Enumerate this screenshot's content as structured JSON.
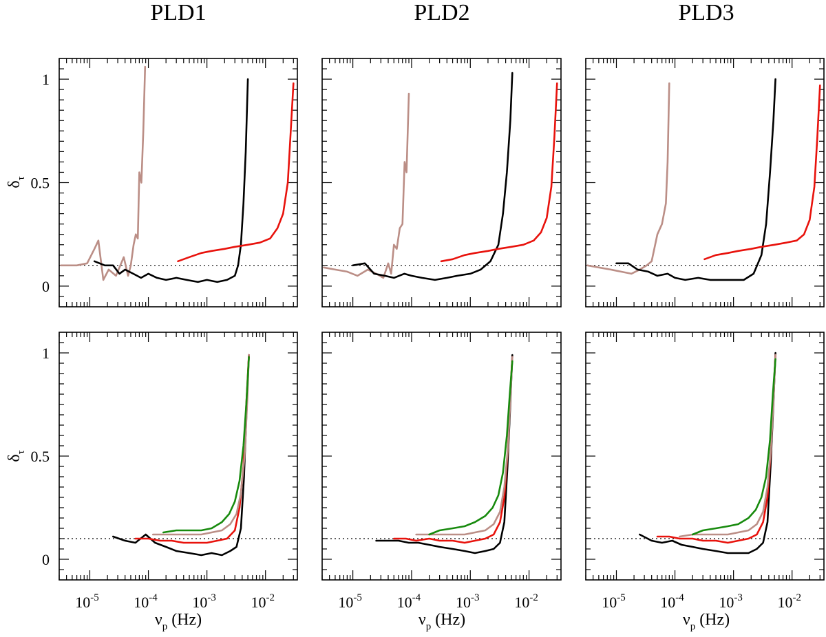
{
  "figure": {
    "column_titles": [
      "PLD1",
      "PLD2",
      "PLD3"
    ],
    "ylabel_main": "δ",
    "ylabel_sub": "τ",
    "xlabel_main": "ν",
    "xlabel_sub": "p",
    "xlabel_unit": " (Hz)",
    "x_tick_labels": [
      {
        "base": "10",
        "exp": "-5"
      },
      {
        "base": "10",
        "exp": "-4"
      },
      {
        "base": "10",
        "exp": "-3"
      },
      {
        "base": "10",
        "exp": "-2"
      }
    ],
    "y_tick_labels": [
      "0",
      "0.5",
      "1"
    ],
    "colors": {
      "black": "#000000",
      "red": "#e8120c",
      "rosy": "#bb8e86",
      "green": "#178a0d"
    }
  },
  "chart_data": [
    {
      "type": "line",
      "panel": "top-left",
      "title": "PLD1",
      "x_scale": "log",
      "xlim": [
        3e-06,
        0.035
      ],
      "ylim": [
        -0.1,
        1.1
      ],
      "reference_y": 0.1,
      "grid": false,
      "series": [
        {
          "color": "rosy",
          "x": [
            3.2e-06,
            6e-06,
            9e-06,
            1.2e-05,
            1.4e-05,
            1.7e-05,
            2.1e-05,
            2.8e-05,
            3.8e-05,
            4.5e-05,
            5e-05,
            5.6e-05,
            6.1e-05,
            6.6e-05,
            7e-05,
            7.6e-05,
            8.2e-05,
            8.8e-05
          ],
          "y": [
            0.1,
            0.1,
            0.11,
            0.18,
            0.22,
            0.03,
            0.08,
            0.05,
            0.14,
            0.05,
            0.1,
            0.2,
            0.25,
            0.23,
            0.55,
            0.5,
            0.75,
            1.06
          ]
        },
        {
          "color": "black",
          "x": [
            1.2e-05,
            1.8e-05,
            2.5e-05,
            3.2e-05,
            4e-05,
            5.5e-05,
            7.5e-05,
            0.0001,
            0.00014,
            0.0002,
            0.0003,
            0.00045,
            0.0007,
            0.001,
            0.0015,
            0.0022,
            0.003,
            0.0034,
            0.0038,
            0.0042,
            0.0046,
            0.005
          ],
          "y": [
            0.12,
            0.1,
            0.1,
            0.06,
            0.08,
            0.06,
            0.04,
            0.06,
            0.04,
            0.03,
            0.04,
            0.03,
            0.02,
            0.03,
            0.02,
            0.03,
            0.05,
            0.1,
            0.2,
            0.4,
            0.65,
            1.0
          ]
        },
        {
          "color": "red",
          "x": [
            0.00032,
            0.0005,
            0.0008,
            0.0012,
            0.002,
            0.003,
            0.005,
            0.008,
            0.012,
            0.016,
            0.02,
            0.024,
            0.027,
            0.03
          ],
          "y": [
            0.12,
            0.14,
            0.16,
            0.17,
            0.18,
            0.19,
            0.2,
            0.21,
            0.23,
            0.28,
            0.35,
            0.5,
            0.75,
            0.98
          ]
        }
      ]
    },
    {
      "type": "line",
      "panel": "top-middle",
      "title": "PLD2",
      "x_scale": "log",
      "xlim": [
        3e-06,
        0.035
      ],
      "ylim": [
        -0.1,
        1.1
      ],
      "reference_y": 0.1,
      "grid": false,
      "series": [
        {
          "color": "rosy",
          "x": [
            3.2e-06,
            5e-06,
            8e-06,
            1.2e-05,
            1.8e-05,
            2.5e-05,
            3.3e-05,
            4e-05,
            4.5e-05,
            5e-05,
            5.6e-05,
            6.3e-05,
            7e-05,
            7.6e-05,
            8.2e-05,
            9e-05
          ],
          "y": [
            0.09,
            0.08,
            0.07,
            0.05,
            0.08,
            0.06,
            0.04,
            0.11,
            0.06,
            0.2,
            0.18,
            0.28,
            0.3,
            0.6,
            0.55,
            0.93
          ]
        },
        {
          "color": "black",
          "x": [
            1e-05,
            1.6e-05,
            2.3e-05,
            3.5e-05,
            5e-05,
            7.5e-05,
            0.0001,
            0.00015,
            0.00025,
            0.0004,
            0.0006,
            0.001,
            0.0015,
            0.0022,
            0.003,
            0.0036,
            0.0042,
            0.0048,
            0.0052
          ],
          "y": [
            0.1,
            0.11,
            0.06,
            0.05,
            0.04,
            0.06,
            0.05,
            0.04,
            0.03,
            0.04,
            0.05,
            0.06,
            0.08,
            0.12,
            0.2,
            0.35,
            0.55,
            0.8,
            1.03
          ]
        },
        {
          "color": "red",
          "x": [
            0.00032,
            0.0005,
            0.0008,
            0.0012,
            0.002,
            0.003,
            0.005,
            0.008,
            0.012,
            0.016,
            0.02,
            0.024,
            0.027,
            0.03
          ],
          "y": [
            0.12,
            0.13,
            0.15,
            0.16,
            0.17,
            0.18,
            0.19,
            0.2,
            0.22,
            0.26,
            0.33,
            0.48,
            0.72,
            0.98
          ]
        }
      ]
    },
    {
      "type": "line",
      "panel": "top-right",
      "title": "PLD3",
      "x_scale": "log",
      "xlim": [
        3e-06,
        0.035
      ],
      "ylim": [
        -0.1,
        1.1
      ],
      "reference_y": 0.1,
      "grid": false,
      "series": [
        {
          "color": "rosy",
          "x": [
            3.2e-06,
            5e-06,
            8e-06,
            1.2e-05,
            1.8e-05,
            2.5e-05,
            3.3e-05,
            4e-05,
            5e-05,
            6e-05,
            7e-05,
            7.5e-05,
            8e-05
          ],
          "y": [
            0.1,
            0.09,
            0.08,
            0.07,
            0.06,
            0.08,
            0.1,
            0.12,
            0.25,
            0.3,
            0.4,
            0.6,
            0.98
          ]
        },
        {
          "color": "black",
          "x": [
            1e-05,
            1.6e-05,
            2.3e-05,
            3.5e-05,
            5e-05,
            7.5e-05,
            0.0001,
            0.00015,
            0.00025,
            0.0004,
            0.0006,
            0.001,
            0.0015,
            0.0022,
            0.003,
            0.0036,
            0.0042,
            0.0048,
            0.0052
          ],
          "y": [
            0.11,
            0.11,
            0.08,
            0.07,
            0.05,
            0.06,
            0.04,
            0.03,
            0.04,
            0.03,
            0.03,
            0.03,
            0.03,
            0.06,
            0.15,
            0.3,
            0.55,
            0.8,
            1.0
          ]
        },
        {
          "color": "red",
          "x": [
            0.00032,
            0.0005,
            0.0008,
            0.0012,
            0.002,
            0.003,
            0.005,
            0.008,
            0.012,
            0.016,
            0.02,
            0.024,
            0.027,
            0.03
          ],
          "y": [
            0.13,
            0.15,
            0.16,
            0.17,
            0.18,
            0.19,
            0.2,
            0.21,
            0.22,
            0.25,
            0.32,
            0.48,
            0.72,
            0.97
          ]
        }
      ]
    },
    {
      "type": "line",
      "panel": "bottom-left",
      "title": "",
      "x_scale": "log",
      "xlim": [
        3e-06,
        0.035
      ],
      "ylim": [
        -0.1,
        1.1
      ],
      "reference_y": 0.1,
      "grid": false,
      "series": [
        {
          "color": "black",
          "x": [
            2.5e-05,
            4e-05,
            6e-05,
            9e-05,
            0.00013,
            0.0002,
            0.0003,
            0.0005,
            0.0008,
            0.0012,
            0.0018,
            0.0025,
            0.0032,
            0.0038,
            0.0043,
            0.0048,
            0.0052
          ],
          "y": [
            0.11,
            0.09,
            0.08,
            0.12,
            0.08,
            0.06,
            0.04,
            0.03,
            0.02,
            0.03,
            0.02,
            0.04,
            0.06,
            0.15,
            0.4,
            0.75,
            0.99
          ]
        },
        {
          "color": "red",
          "x": [
            6e-05,
            0.0001,
            0.00016,
            0.00025,
            0.0004,
            0.0006,
            0.001,
            0.0015,
            0.0022,
            0.003,
            0.0036,
            0.0042,
            0.0047,
            0.0052
          ],
          "y": [
            0.1,
            0.1,
            0.09,
            0.09,
            0.08,
            0.08,
            0.08,
            0.09,
            0.1,
            0.14,
            0.25,
            0.45,
            0.75,
            0.99
          ]
        },
        {
          "color": "rosy",
          "x": [
            0.00012,
            0.0002,
            0.0003,
            0.0005,
            0.0008,
            0.0012,
            0.0018,
            0.0025,
            0.0032,
            0.0038,
            0.0044,
            0.0049,
            0.0052
          ],
          "y": [
            0.12,
            0.12,
            0.12,
            0.12,
            0.12,
            0.13,
            0.14,
            0.17,
            0.22,
            0.32,
            0.5,
            0.78,
            0.99
          ]
        },
        {
          "color": "green",
          "x": [
            0.00018,
            0.0003,
            0.0005,
            0.0008,
            0.0012,
            0.0018,
            0.0024,
            0.003,
            0.0036,
            0.0042,
            0.0047,
            0.0052
          ],
          "y": [
            0.13,
            0.14,
            0.14,
            0.14,
            0.15,
            0.18,
            0.22,
            0.28,
            0.38,
            0.55,
            0.75,
            0.98
          ]
        }
      ]
    },
    {
      "type": "line",
      "panel": "bottom-middle",
      "title": "",
      "x_scale": "log",
      "xlim": [
        3e-06,
        0.035
      ],
      "ylim": [
        -0.1,
        1.1
      ],
      "reference_y": 0.1,
      "grid": false,
      "series": [
        {
          "color": "black",
          "x": [
            2.5e-05,
            4e-05,
            6e-05,
            9e-05,
            0.00013,
            0.0002,
            0.0003,
            0.0005,
            0.0008,
            0.0012,
            0.0018,
            0.0025,
            0.0032,
            0.0038,
            0.0043,
            0.0048,
            0.0052
          ],
          "y": [
            0.09,
            0.09,
            0.09,
            0.08,
            0.08,
            0.07,
            0.06,
            0.05,
            0.04,
            0.03,
            0.04,
            0.05,
            0.08,
            0.18,
            0.45,
            0.75,
            0.99
          ]
        },
        {
          "color": "red",
          "x": [
            5e-05,
            8e-05,
            0.00012,
            0.0002,
            0.0003,
            0.0005,
            0.0008,
            0.0012,
            0.0018,
            0.0025,
            0.0032,
            0.0038,
            0.0044,
            0.0049,
            0.0052
          ],
          "y": [
            0.1,
            0.1,
            0.09,
            0.1,
            0.09,
            0.09,
            0.08,
            0.09,
            0.1,
            0.12,
            0.18,
            0.3,
            0.55,
            0.85,
            0.98
          ]
        },
        {
          "color": "rosy",
          "x": [
            0.00012,
            0.0002,
            0.0003,
            0.0005,
            0.0008,
            0.0012,
            0.0018,
            0.0025,
            0.0032,
            0.0038,
            0.0044,
            0.0049,
            0.0052
          ],
          "y": [
            0.12,
            0.12,
            0.12,
            0.12,
            0.12,
            0.13,
            0.14,
            0.17,
            0.23,
            0.35,
            0.55,
            0.82,
            0.98
          ]
        },
        {
          "color": "green",
          "x": [
            0.0002,
            0.0003,
            0.0005,
            0.0008,
            0.0012,
            0.0018,
            0.0024,
            0.003,
            0.0036,
            0.0042,
            0.0047,
            0.0052
          ],
          "y": [
            0.12,
            0.14,
            0.15,
            0.16,
            0.18,
            0.21,
            0.25,
            0.31,
            0.42,
            0.6,
            0.8,
            0.96
          ]
        }
      ]
    },
    {
      "type": "line",
      "panel": "bottom-right",
      "title": "",
      "x_scale": "log",
      "xlim": [
        3e-06,
        0.035
      ],
      "ylim": [
        -0.1,
        1.1
      ],
      "reference_y": 0.1,
      "grid": false,
      "series": [
        {
          "color": "black",
          "x": [
            2.5e-05,
            4e-05,
            6e-05,
            9e-05,
            0.00013,
            0.0002,
            0.0003,
            0.0005,
            0.0008,
            0.0012,
            0.0018,
            0.0025,
            0.0032,
            0.0038,
            0.0043,
            0.0048,
            0.0052
          ],
          "y": [
            0.12,
            0.09,
            0.08,
            0.09,
            0.07,
            0.06,
            0.05,
            0.04,
            0.03,
            0.03,
            0.03,
            0.05,
            0.08,
            0.18,
            0.45,
            0.75,
            1.0
          ]
        },
        {
          "color": "red",
          "x": [
            5e-05,
            8e-05,
            0.00012,
            0.0002,
            0.0003,
            0.0005,
            0.0008,
            0.0012,
            0.0018,
            0.0025,
            0.0032,
            0.0038,
            0.0044,
            0.0049,
            0.0052
          ],
          "y": [
            0.11,
            0.11,
            0.1,
            0.1,
            0.09,
            0.09,
            0.08,
            0.09,
            0.1,
            0.12,
            0.18,
            0.3,
            0.55,
            0.85,
            0.99
          ]
        },
        {
          "color": "rosy",
          "x": [
            0.00012,
            0.0002,
            0.0003,
            0.0005,
            0.0008,
            0.0012,
            0.0018,
            0.0025,
            0.0032,
            0.0038,
            0.0044,
            0.0049,
            0.0052
          ],
          "y": [
            0.11,
            0.12,
            0.12,
            0.12,
            0.12,
            0.13,
            0.14,
            0.17,
            0.23,
            0.35,
            0.55,
            0.82,
            0.99
          ]
        },
        {
          "color": "green",
          "x": [
            0.0002,
            0.0003,
            0.0005,
            0.0008,
            0.0012,
            0.0018,
            0.0024,
            0.003,
            0.0036,
            0.0042,
            0.0047,
            0.0052
          ],
          "y": [
            0.12,
            0.14,
            0.15,
            0.16,
            0.17,
            0.2,
            0.24,
            0.3,
            0.4,
            0.58,
            0.8,
            0.97
          ]
        }
      ]
    }
  ]
}
